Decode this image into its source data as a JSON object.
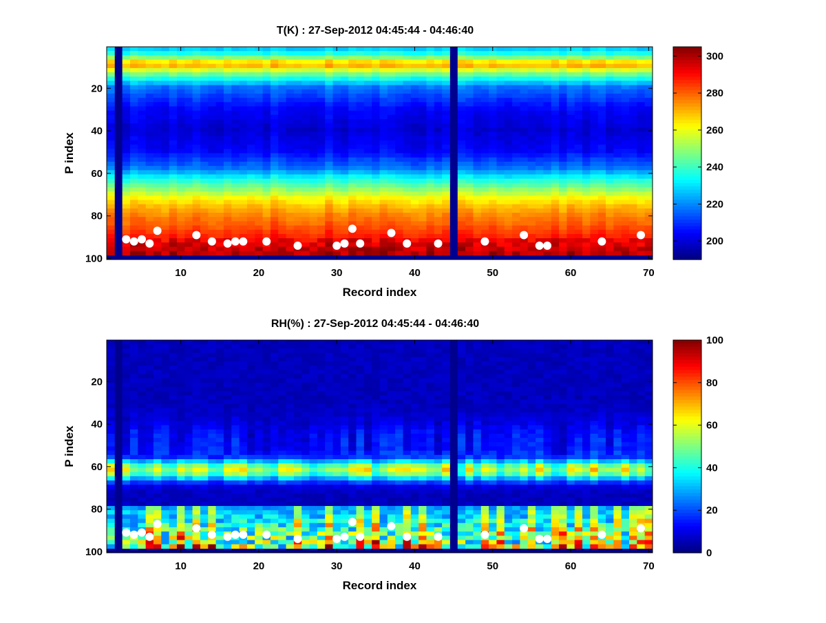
{
  "chart_data": [
    {
      "type": "heatmap",
      "title": "T(K) : 27-Sep-2012 04:45:44 - 04:46:40",
      "xlabel": "Record index",
      "ylabel": "P index",
      "xlim": [
        0.5,
        70.5
      ],
      "ylim": [
        0.5,
        100.5
      ],
      "y_reversed": true,
      "xticks": [
        10,
        20,
        30,
        40,
        50,
        60,
        70
      ],
      "yticks": [
        20,
        40,
        60,
        80,
        100
      ],
      "colormap": "jet",
      "clim": [
        190,
        305
      ],
      "colorbar_ticks": [
        200,
        220,
        240,
        260,
        280,
        300
      ],
      "missing_columns": [
        2,
        45
      ],
      "profile": [
        [
          1,
          225
        ],
        [
          5,
          240
        ],
        [
          8,
          265
        ],
        [
          10,
          270
        ],
        [
          12,
          258
        ],
        [
          15,
          240
        ],
        [
          20,
          218
        ],
        [
          30,
          205
        ],
        [
          40,
          200
        ],
        [
          50,
          205
        ],
        [
          58,
          218
        ],
        [
          62,
          232
        ],
        [
          65,
          242
        ],
        [
          68,
          250
        ],
        [
          72,
          262
        ],
        [
          76,
          270
        ],
        [
          80,
          276
        ],
        [
          84,
          280
        ],
        [
          88,
          285
        ],
        [
          92,
          290
        ],
        [
          96,
          295
        ],
        [
          98,
          297
        ]
      ],
      "surface_markers": [
        [
          3,
          91
        ],
        [
          4,
          92
        ],
        [
          5,
          91
        ],
        [
          6,
          93
        ],
        [
          7,
          87
        ],
        [
          12,
          89
        ],
        [
          14,
          92
        ],
        [
          16,
          93
        ],
        [
          17,
          92
        ],
        [
          18,
          92
        ],
        [
          21,
          92
        ],
        [
          25,
          94
        ],
        [
          30,
          94
        ],
        [
          31,
          93
        ],
        [
          32,
          86
        ],
        [
          33,
          93
        ],
        [
          37,
          88
        ],
        [
          39,
          93
        ],
        [
          43,
          93
        ],
        [
          49,
          92
        ],
        [
          54,
          89
        ],
        [
          56,
          94
        ],
        [
          57,
          94
        ],
        [
          64,
          92
        ],
        [
          69,
          89
        ]
      ]
    },
    {
      "type": "heatmap",
      "title": "RH(%) : 27-Sep-2012 04:45:44 - 04:46:40",
      "xlabel": "Record index",
      "ylabel": "P index",
      "xlim": [
        0.5,
        70.5
      ],
      "ylim": [
        0.5,
        100.5
      ],
      "y_reversed": true,
      "xticks": [
        10,
        20,
        30,
        40,
        50,
        60,
        70
      ],
      "yticks": [
        20,
        40,
        60,
        80,
        100
      ],
      "colormap": "jet",
      "clim": [
        0,
        100
      ],
      "colorbar_ticks": [
        0,
        20,
        40,
        60,
        80,
        100
      ],
      "missing_columns": [
        2,
        45
      ],
      "moist_layer_center": 61,
      "moist_layer_peak": 65,
      "surface_markers": [
        [
          3,
          91
        ],
        [
          4,
          92
        ],
        [
          5,
          91
        ],
        [
          6,
          93
        ],
        [
          7,
          87
        ],
        [
          12,
          89
        ],
        [
          14,
          92
        ],
        [
          16,
          93
        ],
        [
          17,
          92
        ],
        [
          18,
          92
        ],
        [
          21,
          92
        ],
        [
          25,
          94
        ],
        [
          30,
          94
        ],
        [
          31,
          93
        ],
        [
          32,
          86
        ],
        [
          33,
          93
        ],
        [
          37,
          88
        ],
        [
          39,
          93
        ],
        [
          43,
          93
        ],
        [
          49,
          92
        ],
        [
          54,
          89
        ],
        [
          56,
          94
        ],
        [
          57,
          94
        ],
        [
          64,
          92
        ],
        [
          69,
          89
        ]
      ]
    }
  ]
}
